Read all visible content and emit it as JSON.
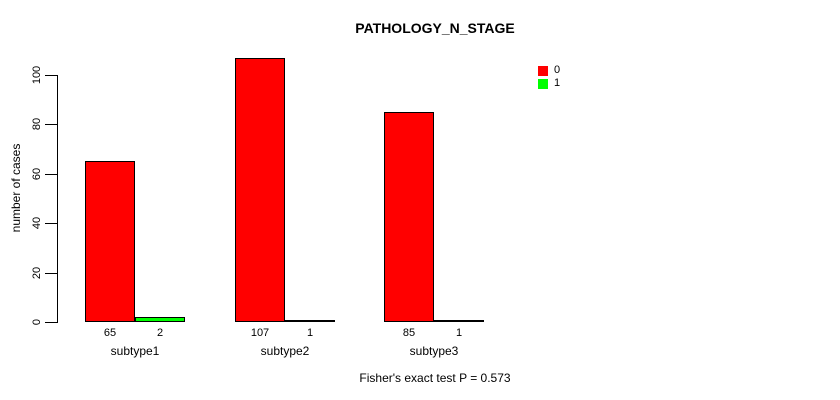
{
  "chart_data": {
    "type": "bar",
    "title": "PATHOLOGY_N_STAGE",
    "xlabel": "",
    "ylabel": "number of cases",
    "categories": [
      "subtype1",
      "subtype2",
      "subtype3"
    ],
    "series": [
      {
        "name": "0",
        "color": "#ff0000",
        "values": [
          65,
          107,
          85
        ]
      },
      {
        "name": "1",
        "color": "#00ff00",
        "values": [
          2,
          1,
          1
        ]
      }
    ],
    "bar_value_labels": [
      [
        "65",
        "2"
      ],
      [
        "107",
        "1"
      ],
      [
        "85",
        "1"
      ]
    ],
    "ylim": [
      0,
      100
    ],
    "yticks": [
      0,
      20,
      40,
      60,
      80,
      100
    ],
    "grid": "off",
    "legend_position": "top-right",
    "annotation": "Fisher's exact test P = 0.573"
  },
  "colors": {
    "background": "#ffffff",
    "axis": "#000000",
    "text": "#000000",
    "series0": "#ff0000",
    "series1": "#00ff00"
  }
}
